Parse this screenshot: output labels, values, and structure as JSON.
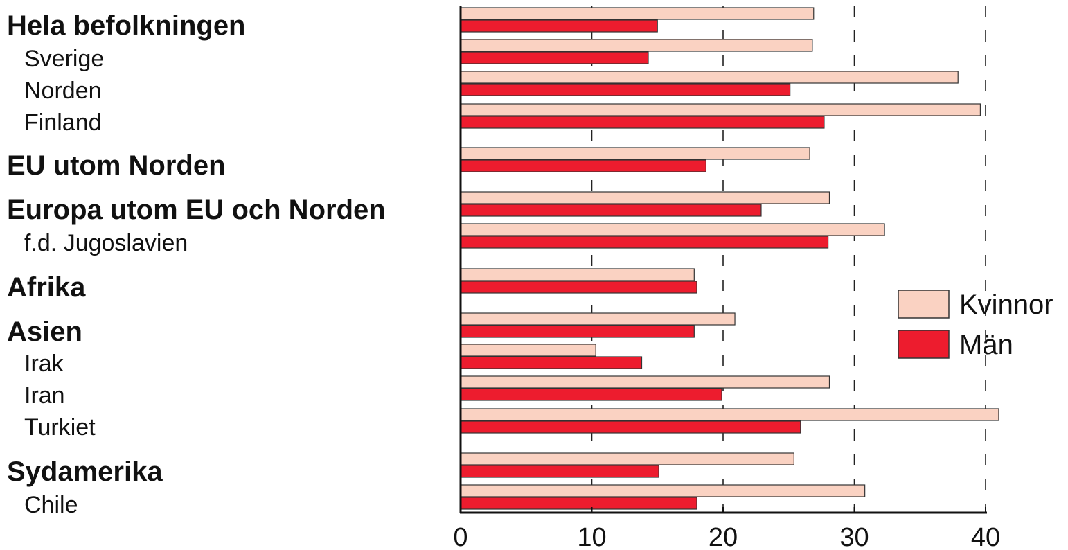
{
  "chart_data": {
    "type": "bar",
    "orientation": "horizontal",
    "categories": [
      {
        "label": "Hela befolkningen",
        "level": 0
      },
      {
        "label": "Sverige",
        "level": 1
      },
      {
        "label": "Norden",
        "level": 1
      },
      {
        "label": "Finland",
        "level": 1
      },
      {
        "label": "EU utom Norden",
        "level": 0
      },
      {
        "label": "Europa utom EU och Norden",
        "level": 0
      },
      {
        "label": "f.d. Jugoslavien",
        "level": 1
      },
      {
        "label": "Afrika",
        "level": 0
      },
      {
        "label": "Asien",
        "level": 0
      },
      {
        "label": "Irak",
        "level": 1
      },
      {
        "label": "Iran",
        "level": 1
      },
      {
        "label": "Turkiet",
        "level": 1
      },
      {
        "label": "Sydamerika",
        "level": 0
      },
      {
        "label": "Chile",
        "level": 1
      }
    ],
    "series": [
      {
        "name": "Kvinnor",
        "color": "#fad2c2",
        "values": [
          26.9,
          26.8,
          37.9,
          39.6,
          26.6,
          28.1,
          32.3,
          17.8,
          20.9,
          10.3,
          28.1,
          41.0,
          25.4,
          30.8
        ]
      },
      {
        "name": "Män",
        "color": "#ed1c2e",
        "values": [
          15.0,
          14.3,
          25.1,
          27.7,
          18.7,
          22.9,
          28.0,
          18.0,
          17.8,
          13.8,
          19.9,
          25.9,
          15.1,
          18.0
        ]
      }
    ],
    "xlim": [
      0,
      41
    ],
    "xticks": [
      0,
      10,
      20,
      30,
      40
    ],
    "grid": "vertical dashed",
    "legend_position": "right"
  }
}
